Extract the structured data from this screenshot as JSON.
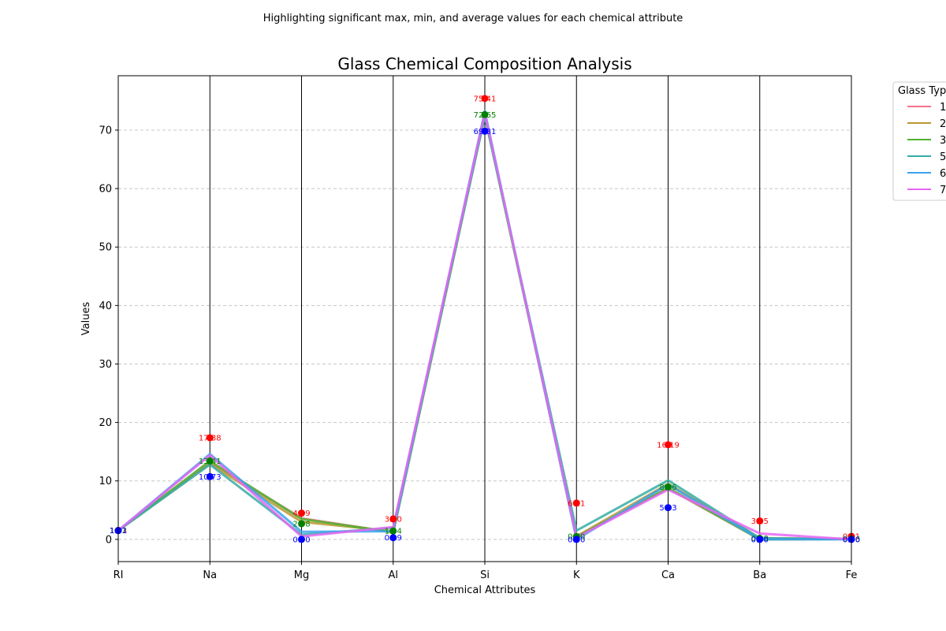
{
  "chart_data": {
    "type": "line",
    "subtitle": "Highlighting significant max, min, and average values for each chemical attribute",
    "title": "Glass Chemical Composition Analysis",
    "xlabel": "Chemical Attributes",
    "ylabel": "Values",
    "categories": [
      "RI",
      "Na",
      "Mg",
      "Al",
      "Si",
      "K",
      "Ca",
      "Ba",
      "Fe"
    ],
    "ylim": [
      -3.8,
      79.3
    ],
    "yticks": [
      0,
      10,
      20,
      30,
      40,
      50,
      60,
      70
    ],
    "grid": "y-dashed",
    "legend": {
      "title": "Glass Type",
      "placement": "upper-right-outside",
      "entries": [
        "1",
        "2",
        "3",
        "5",
        "6",
        "7"
      ]
    },
    "series": [
      {
        "name": "1",
        "color": "#f77189",
        "values": [
          1.52,
          13.2,
          3.6,
          1.2,
          72.6,
          0.5,
          8.7,
          0.0,
          0.05
        ]
      },
      {
        "name": "2",
        "color": "#bb9832",
        "values": [
          1.52,
          12.9,
          3.0,
          1.4,
          72.6,
          0.5,
          9.5,
          0.2,
          0.08
        ]
      },
      {
        "name": "3",
        "color": "#50b131",
        "values": [
          1.52,
          13.4,
          3.5,
          1.2,
          72.4,
          0.4,
          8.8,
          0.0,
          0.05
        ]
      },
      {
        "name": "5",
        "color": "#36ada4",
        "values": [
          1.52,
          12.8,
          0.8,
          2.0,
          72.4,
          1.5,
          10.1,
          0.2,
          0.05
        ]
      },
      {
        "name": "6",
        "color": "#3ba3ec",
        "values": [
          1.52,
          14.6,
          1.3,
          1.4,
          73.2,
          0.0,
          9.4,
          0.0,
          0.0
        ]
      },
      {
        "name": "7",
        "color": "#e866f4",
        "values": [
          1.52,
          14.4,
          0.5,
          2.1,
          72.9,
          0.3,
          8.5,
          1.0,
          0.01
        ]
      }
    ],
    "annotations": {
      "max": {
        "color": "#ff0000",
        "labels": [
          "1.53",
          "17.38",
          "4.49",
          "3.50",
          "75.41",
          "6.21",
          "16.19",
          "3.15",
          "0.51"
        ],
        "values": [
          1.53,
          17.38,
          4.49,
          3.5,
          75.41,
          6.21,
          16.19,
          3.15,
          0.51
        ]
      },
      "avg": {
        "color": "#008000",
        "labels": [
          "1.52",
          "13.41",
          "2.68",
          "1.44",
          "72.65",
          "0.50",
          "8.96",
          "0.18",
          "0.06"
        ],
        "values": [
          1.52,
          13.41,
          2.68,
          1.44,
          72.65,
          0.5,
          8.96,
          0.18,
          0.06
        ]
      },
      "min": {
        "color": "#0000ff",
        "labels": [
          "1.51",
          "10.73",
          "0.00",
          "0.29",
          "69.81",
          "0.00",
          "5.43",
          "0.00",
          "0.00"
        ],
        "values": [
          1.51,
          10.73,
          0.0,
          0.29,
          69.81,
          0.0,
          5.43,
          0.0,
          0.0
        ]
      }
    }
  }
}
